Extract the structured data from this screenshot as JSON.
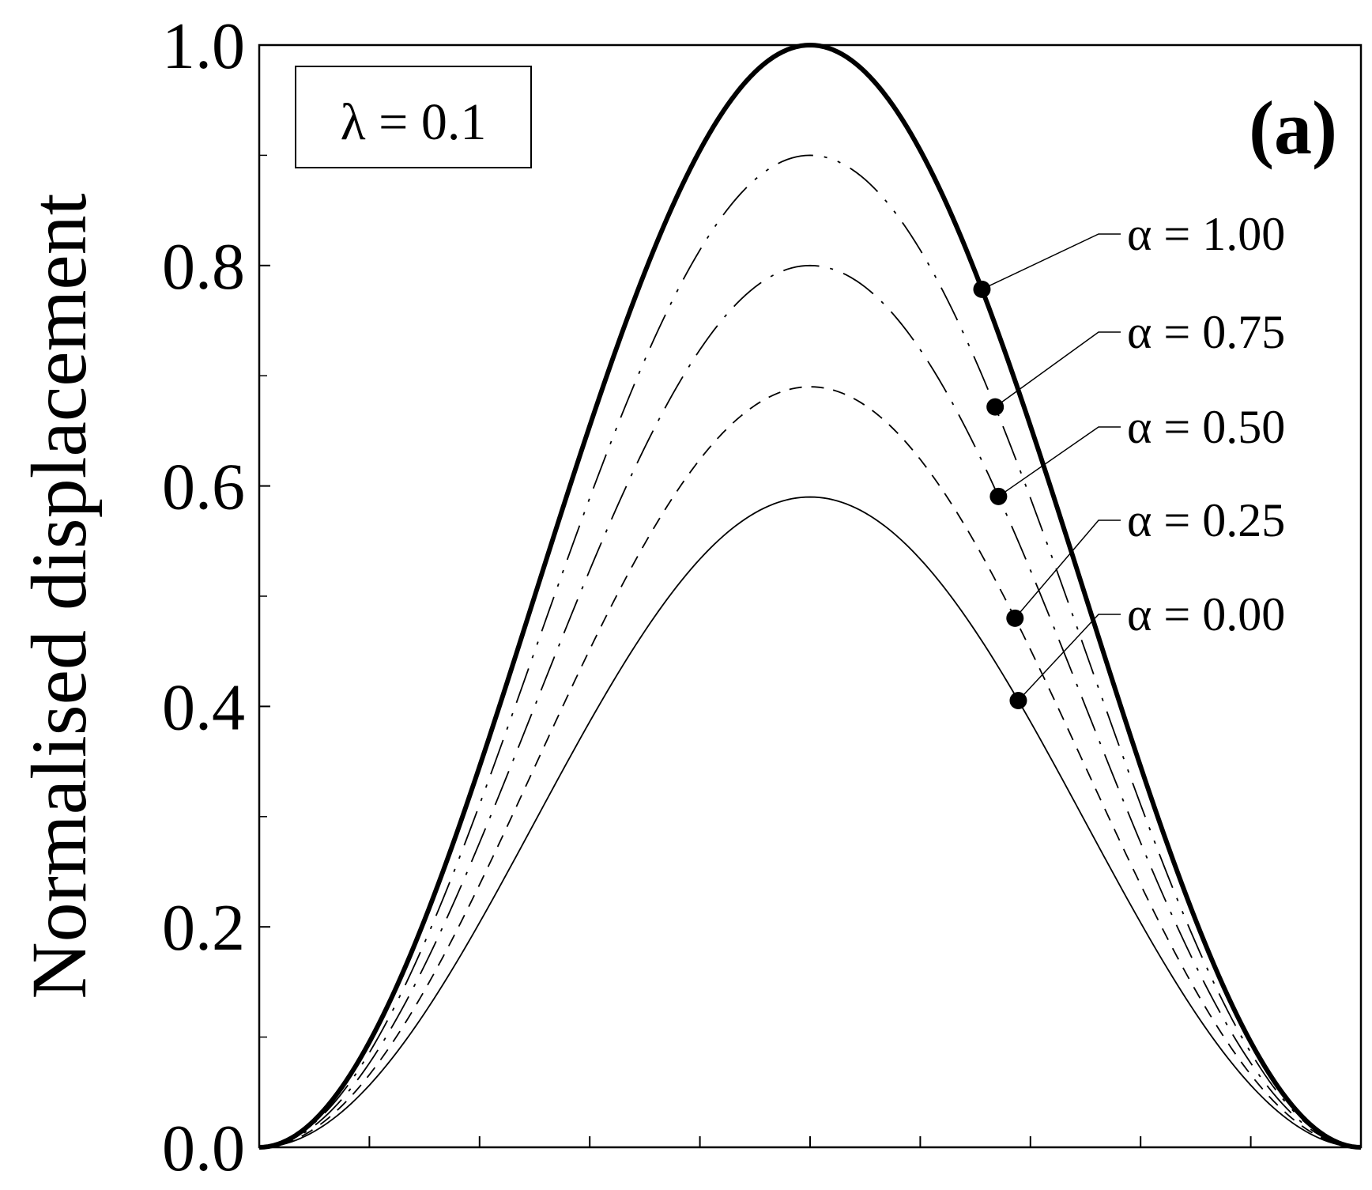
{
  "chart_data": {
    "type": "line",
    "title": "",
    "panel_label": "(a)",
    "parameter_box": "λ = 0.1",
    "xlabel": "",
    "ylabel": "Normalised displacement",
    "xlim": [
      0,
      1
    ],
    "ylim": [
      0,
      1.0
    ],
    "y_ticks": [
      "0.0",
      "0.2",
      "0.4",
      "0.6",
      "0.8",
      "1.0"
    ],
    "y_tick_values": [
      0.0,
      0.2,
      0.4,
      0.6,
      0.8,
      1.0
    ],
    "y_minor_tick_values": [
      0.1,
      0.3,
      0.5,
      0.7,
      0.9
    ],
    "x_tick_values": [
      0.1,
      0.2,
      0.3,
      0.4,
      0.5,
      0.6,
      0.7,
      0.8,
      0.9
    ],
    "x_tick_labels_shown": false,
    "grid": false,
    "legend": "annotations with leader lines, right side",
    "curve_shape": "y = peak * sin^2(pi * x)",
    "series": [
      {
        "label": "α = 1.00",
        "peak": 1.0,
        "style": "solid-thick",
        "marker_x": 0.656
      },
      {
        "label": "α = 0.75",
        "peak": 0.9,
        "style": "long-dash-dot-dot",
        "marker_x": 0.668
      },
      {
        "label": "α = 0.50",
        "peak": 0.8,
        "style": "long-dash-dot",
        "marker_x": 0.671
      },
      {
        "label": "α = 0.25",
        "peak": 0.69,
        "style": "dash",
        "marker_x": 0.686
      },
      {
        "label": "α = 0.00",
        "peak": 0.59,
        "style": "solid-thin",
        "marker_x": 0.689
      }
    ]
  }
}
